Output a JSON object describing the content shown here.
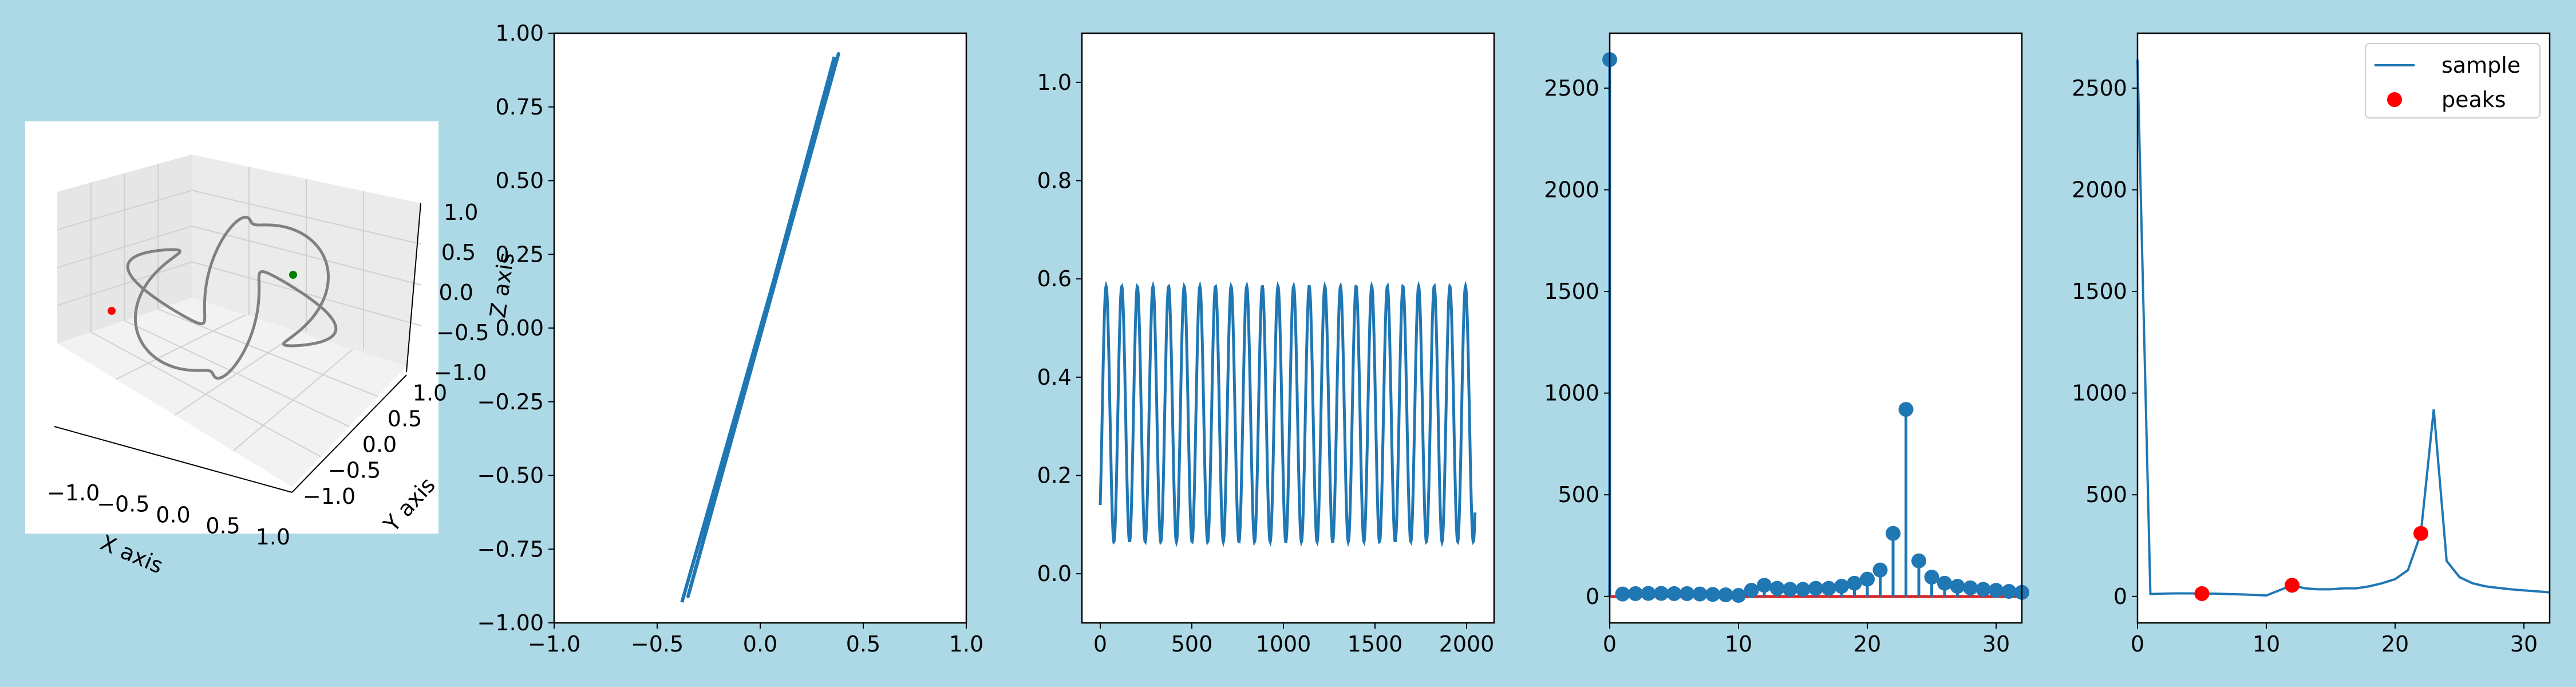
{
  "figure": {
    "background": "#add8e6",
    "series_color": "#1f77b4",
    "peak_color": "#ff0000",
    "stem_base_color": "#d62728"
  },
  "chart_data": [
    {
      "type": "line3d",
      "xlabel": "X axis",
      "ylabel": "Y axis",
      "zlabel": "Z axis",
      "xticks": [
        "−1.0",
        "−0.5",
        "0.0",
        "0.5",
        "1.0"
      ],
      "yticks": [
        "−1.0",
        "−0.5",
        "0.0",
        "0.5",
        "1.0"
      ],
      "zticks": [
        "−1.0",
        "−0.5",
        "0.0",
        "0.5",
        "1.0"
      ],
      "xlim": [
        -1,
        1
      ],
      "ylim": [
        -1,
        1
      ],
      "zlim": [
        -1,
        1
      ],
      "curve": "closed spherical loop, radius ~1",
      "markers": [
        {
          "color": "red"
        },
        {
          "color": "green"
        }
      ],
      "grid": true
    },
    {
      "type": "line",
      "xlim": [
        -1,
        1
      ],
      "ylim": [
        -1,
        1
      ],
      "xticks": [
        "−1.0",
        "−0.5",
        "0.0",
        "0.5",
        "1.0"
      ],
      "yticks": [
        "−1.00",
        "−0.75",
        "−0.50",
        "−0.25",
        "0.00",
        "0.25",
        "0.50",
        "0.75",
        "1.00"
      ],
      "x": [
        -0.38,
        0.38,
        -0.35,
        0.36
      ],
      "y": [
        -0.93,
        0.93,
        -0.91,
        0.92
      ]
    },
    {
      "type": "line",
      "xlim": [
        -100,
        2150
      ],
      "ylim": [
        -0.1,
        1.1
      ],
      "xticks": [
        "0",
        "500",
        "1000",
        "1500",
        "2000"
      ],
      "yticks": [
        "0.0",
        "0.2",
        "0.4",
        "0.6",
        "0.8",
        "1.0"
      ],
      "n_points": 2048,
      "period": 85.3,
      "start": 0.14,
      "end": 0.13,
      "ymin": 0.065,
      "ymax": 0.585
    },
    {
      "type": "stem",
      "xlim": [
        0,
        32
      ],
      "ylim": [
        -130,
        2770
      ],
      "xticks": [
        "0",
        "10",
        "20",
        "30"
      ],
      "yticks": [
        "0",
        "500",
        "1000",
        "1500",
        "2000",
        "2500"
      ],
      "x": [
        0,
        1,
        2,
        3,
        4,
        5,
        6,
        7,
        8,
        9,
        10,
        11,
        12,
        13,
        14,
        15,
        16,
        17,
        18,
        19,
        20,
        21,
        22,
        23,
        24,
        25,
        26,
        27,
        28,
        29,
        30,
        31,
        32
      ],
      "values": [
        2640,
        12,
        14,
        15,
        15,
        14,
        14,
        12,
        10,
        8,
        5,
        30,
        55,
        40,
        35,
        35,
        40,
        40,
        50,
        65,
        85,
        130,
        310,
        920,
        175,
        95,
        65,
        50,
        42,
        35,
        30,
        25,
        20
      ]
    },
    {
      "type": "line",
      "xlim": [
        0,
        32
      ],
      "ylim": [
        -130,
        2770
      ],
      "xticks": [
        "0",
        "10",
        "20",
        "30"
      ],
      "yticks": [
        "0",
        "500",
        "1000",
        "1500",
        "2000",
        "2500"
      ],
      "legend": {
        "location": "top-right",
        "entries": [
          "sample",
          "peaks"
        ]
      },
      "series": [
        {
          "name": "sample",
          "x": [
            0,
            1,
            2,
            3,
            4,
            5,
            6,
            7,
            8,
            9,
            10,
            11,
            12,
            13,
            14,
            15,
            16,
            17,
            18,
            19,
            20,
            21,
            22,
            23,
            24,
            25,
            26,
            27,
            28,
            29,
            30,
            31,
            32
          ],
          "values": [
            2640,
            12,
            14,
            15,
            15,
            14,
            14,
            12,
            10,
            8,
            5,
            30,
            55,
            40,
            35,
            35,
            40,
            40,
            50,
            65,
            85,
            130,
            310,
            920,
            175,
            95,
            65,
            50,
            42,
            35,
            30,
            25,
            20
          ]
        }
      ],
      "peaks": {
        "name": "peaks",
        "x": [
          5,
          12,
          22
        ],
        "values": [
          14,
          55,
          310
        ]
      }
    }
  ]
}
